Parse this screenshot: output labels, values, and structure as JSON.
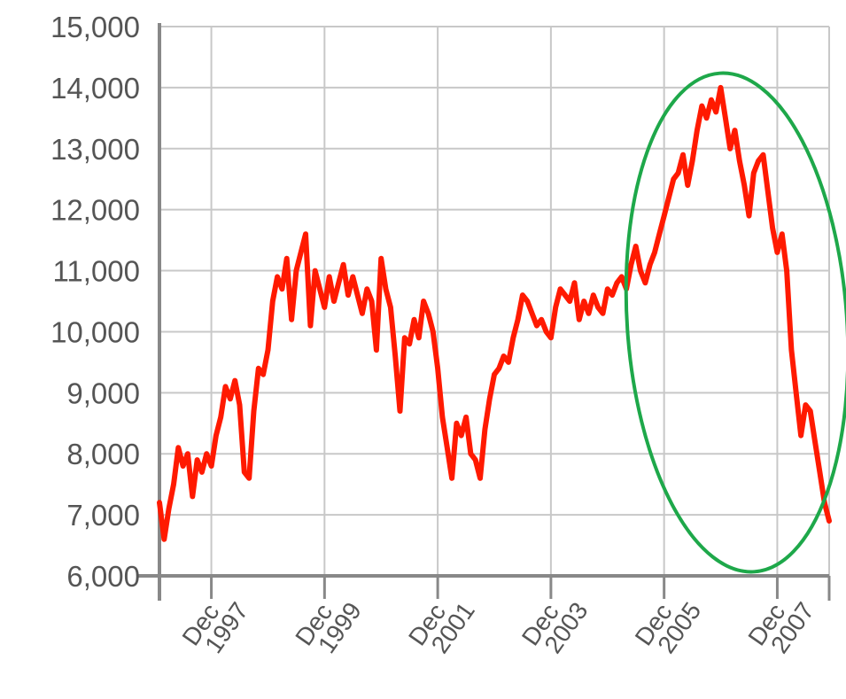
{
  "chart_data": {
    "type": "line",
    "title": "",
    "xlabel": "",
    "ylabel": "",
    "ylim": [
      6000,
      15000
    ],
    "xlim": [
      "1997-01",
      "2008-11"
    ],
    "grid": true,
    "legend": "none",
    "y_ticks": [
      "6,000",
      "7,000",
      "8,000",
      "9,000",
      "10,000",
      "11,000",
      "12,000",
      "13,000",
      "14,000",
      "15,000"
    ],
    "x_ticks": [
      {
        "at": "1997-12",
        "label": "Dec 1997"
      },
      {
        "at": "1999-12",
        "label": "Dec 1999"
      },
      {
        "at": "2001-12",
        "label": "Dec 2001"
      },
      {
        "at": "2003-12",
        "label": "Dec 2003"
      },
      {
        "at": "2005-12",
        "label": "Dec 2005"
      },
      {
        "at": "2007-12",
        "label": "Dec 2007"
      }
    ],
    "series": [
      {
        "color": "#ff1a00",
        "x": [
          "1997-01",
          "1997-02",
          "1997-03",
          "1997-04",
          "1997-05",
          "1997-06",
          "1997-07",
          "1997-08",
          "1997-09",
          "1997-10",
          "1997-11",
          "1997-12",
          "1998-01",
          "1998-02",
          "1998-03",
          "1998-04",
          "1998-05",
          "1998-06",
          "1998-07",
          "1998-08",
          "1998-09",
          "1998-10",
          "1998-11",
          "1998-12",
          "1999-01",
          "1999-02",
          "1999-03",
          "1999-04",
          "1999-05",
          "1999-06",
          "1999-07",
          "1999-08",
          "1999-09",
          "1999-10",
          "1999-11",
          "1999-12",
          "2000-01",
          "2000-02",
          "2000-03",
          "2000-04",
          "2000-05",
          "2000-06",
          "2000-07",
          "2000-08",
          "2000-09",
          "2000-10",
          "2000-11",
          "2000-12",
          "2001-01",
          "2001-02",
          "2001-03",
          "2001-04",
          "2001-05",
          "2001-06",
          "2001-07",
          "2001-08",
          "2001-09",
          "2001-10",
          "2001-11",
          "2001-12",
          "2002-01",
          "2002-02",
          "2002-03",
          "2002-04",
          "2002-05",
          "2002-06",
          "2002-07",
          "2002-08",
          "2002-09",
          "2002-10",
          "2002-11",
          "2002-12",
          "2003-01",
          "2003-02",
          "2003-03",
          "2003-04",
          "2003-05",
          "2003-06",
          "2003-07",
          "2003-08",
          "2003-09",
          "2003-10",
          "2003-11",
          "2003-12",
          "2004-01",
          "2004-02",
          "2004-03",
          "2004-04",
          "2004-05",
          "2004-06",
          "2004-07",
          "2004-08",
          "2004-09",
          "2004-10",
          "2004-11",
          "2004-12",
          "2005-01",
          "2005-02",
          "2005-03",
          "2005-04",
          "2005-05",
          "2005-06",
          "2005-07",
          "2005-08",
          "2005-09",
          "2005-10",
          "2005-11",
          "2005-12",
          "2006-01",
          "2006-02",
          "2006-03",
          "2006-04",
          "2006-05",
          "2006-06",
          "2006-07",
          "2006-08",
          "2006-09",
          "2006-10",
          "2006-11",
          "2006-12",
          "2007-01",
          "2007-02",
          "2007-03",
          "2007-04",
          "2007-05",
          "2007-06",
          "2007-07",
          "2007-08",
          "2007-09",
          "2007-10",
          "2007-11",
          "2007-12",
          "2008-01",
          "2008-02",
          "2008-03",
          "2008-04",
          "2008-05",
          "2008-06",
          "2008-07",
          "2008-08",
          "2008-09",
          "2008-10",
          "2008-11"
        ],
        "values": [
          7200,
          6600,
          7100,
          7500,
          8100,
          7800,
          8000,
          7300,
          7900,
          7700,
          8000,
          7800,
          8300,
          8600,
          9100,
          8900,
          9200,
          8800,
          7700,
          7600,
          8700,
          9400,
          9300,
          9700,
          10500,
          10900,
          10700,
          11200,
          10200,
          11000,
          11300,
          11600,
          10100,
          11000,
          10700,
          10400,
          10900,
          10500,
          10800,
          11100,
          10600,
          10900,
          10600,
          10300,
          10700,
          10500,
          9700,
          11200,
          10700,
          10400,
          9600,
          8700,
          9900,
          9800,
          10200,
          9900,
          10500,
          10300,
          10000,
          9400,
          8600,
          8100,
          7600,
          8500,
          8300,
          8600,
          8000,
          7900,
          7600,
          8400,
          8900,
          9300,
          9400,
          9600,
          9500,
          9900,
          10200,
          10600,
          10500,
          10300,
          10100,
          10200,
          10000,
          9900,
          10400,
          10700,
          10600,
          10500,
          10800,
          10200,
          10500,
          10300,
          10600,
          10400,
          10300,
          10700,
          10600,
          10800,
          10900,
          10700,
          11100,
          11400,
          11000,
          10800,
          11100,
          11300,
          11600,
          11900,
          12200,
          12500,
          12600,
          12900,
          12400,
          12800,
          13300,
          13700,
          13500,
          13800,
          13600,
          14000,
          13500,
          13000,
          13300,
          12800,
          12400,
          11900,
          12600,
          12800,
          12900,
          12300,
          11700,
          11300,
          11600,
          11000,
          9700,
          9000,
          8300,
          8800,
          8700,
          8200,
          7700,
          7200,
          6900
        ]
      }
    ]
  },
  "annotation": {
    "shape": "ellipse",
    "color": "#1ea84a"
  }
}
